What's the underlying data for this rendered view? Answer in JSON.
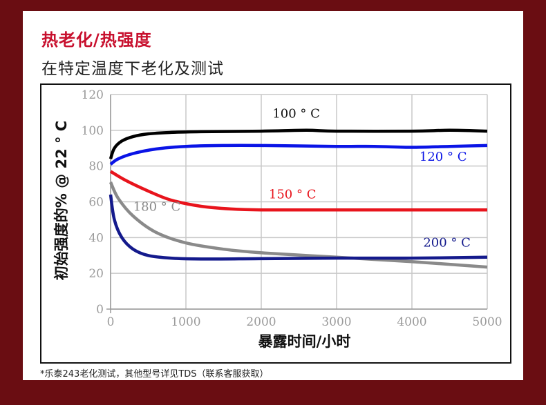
{
  "header": {
    "title": "热老化/热强度",
    "subtitle": "在特定温度下老化及测试"
  },
  "footnote": "*乐泰243老化测试，其他型号详见TDS（联系客服获取）",
  "colors": {
    "background": "#6a0d12",
    "title": "#c8102e",
    "series_100": "#000000",
    "series_120": "#0a14e6",
    "series_150": "#e8141c",
    "series_180": "#8a8a8a",
    "series_200": "#141a8c"
  },
  "chart_data": {
    "type": "line",
    "xlabel": "暴露时间/小时",
    "ylabel": "初始强度的% @ 22 ° C",
    "xlim": [
      0,
      5000
    ],
    "ylim": [
      0,
      120
    ],
    "xticks": [
      0,
      1000,
      2000,
      3000,
      4000,
      5000
    ],
    "yticks": [
      0,
      20,
      40,
      60,
      80,
      100,
      120
    ],
    "grid": true,
    "series": [
      {
        "name": "100 ° C",
        "color": "#000000",
        "x": [
          0,
          50,
          150,
          300,
          500,
          800,
          1200,
          2000,
          2600,
          3000,
          4000,
          4500,
          5000
        ],
        "y": [
          84,
          90,
          94,
          96.5,
          98,
          98.8,
          99.2,
          99.5,
          100,
          99.5,
          99.5,
          100,
          99.5
        ]
      },
      {
        "name": "120 ° C",
        "color": "#0a14e6",
        "x": [
          0,
          100,
          300,
          600,
          1000,
          1500,
          2000,
          3000,
          3500,
          4000,
          4500,
          5000
        ],
        "y": [
          81,
          84,
          87,
          89.5,
          91,
          91.5,
          91.5,
          91,
          91,
          90.5,
          91,
          91.5
        ]
      },
      {
        "name": "150 ° C",
        "color": "#e8141c",
        "x": [
          0,
          200,
          500,
          800,
          1200,
          1600,
          2000,
          3000,
          4000,
          5000
        ],
        "y": [
          77,
          72,
          66,
          61,
          57.5,
          56,
          55.5,
          55.5,
          55.5,
          55.5
        ]
      },
      {
        "name": "180 ° C",
        "color": "#8a8a8a",
        "x": [
          0,
          100,
          300,
          600,
          1000,
          1500,
          2000,
          3000,
          4000,
          5000
        ],
        "y": [
          71,
          62,
          52,
          43,
          37,
          33.5,
          31.5,
          29,
          26.5,
          23.5
        ]
      },
      {
        "name": "200 ° C",
        "color": "#141a8c",
        "x": [
          0,
          50,
          150,
          300,
          500,
          800,
          1200,
          2000,
          3000,
          4000,
          5000
        ],
        "y": [
          64,
          50,
          40,
          33.5,
          30,
          28.5,
          28,
          28.2,
          28.5,
          28.5,
          29
        ]
      }
    ]
  }
}
